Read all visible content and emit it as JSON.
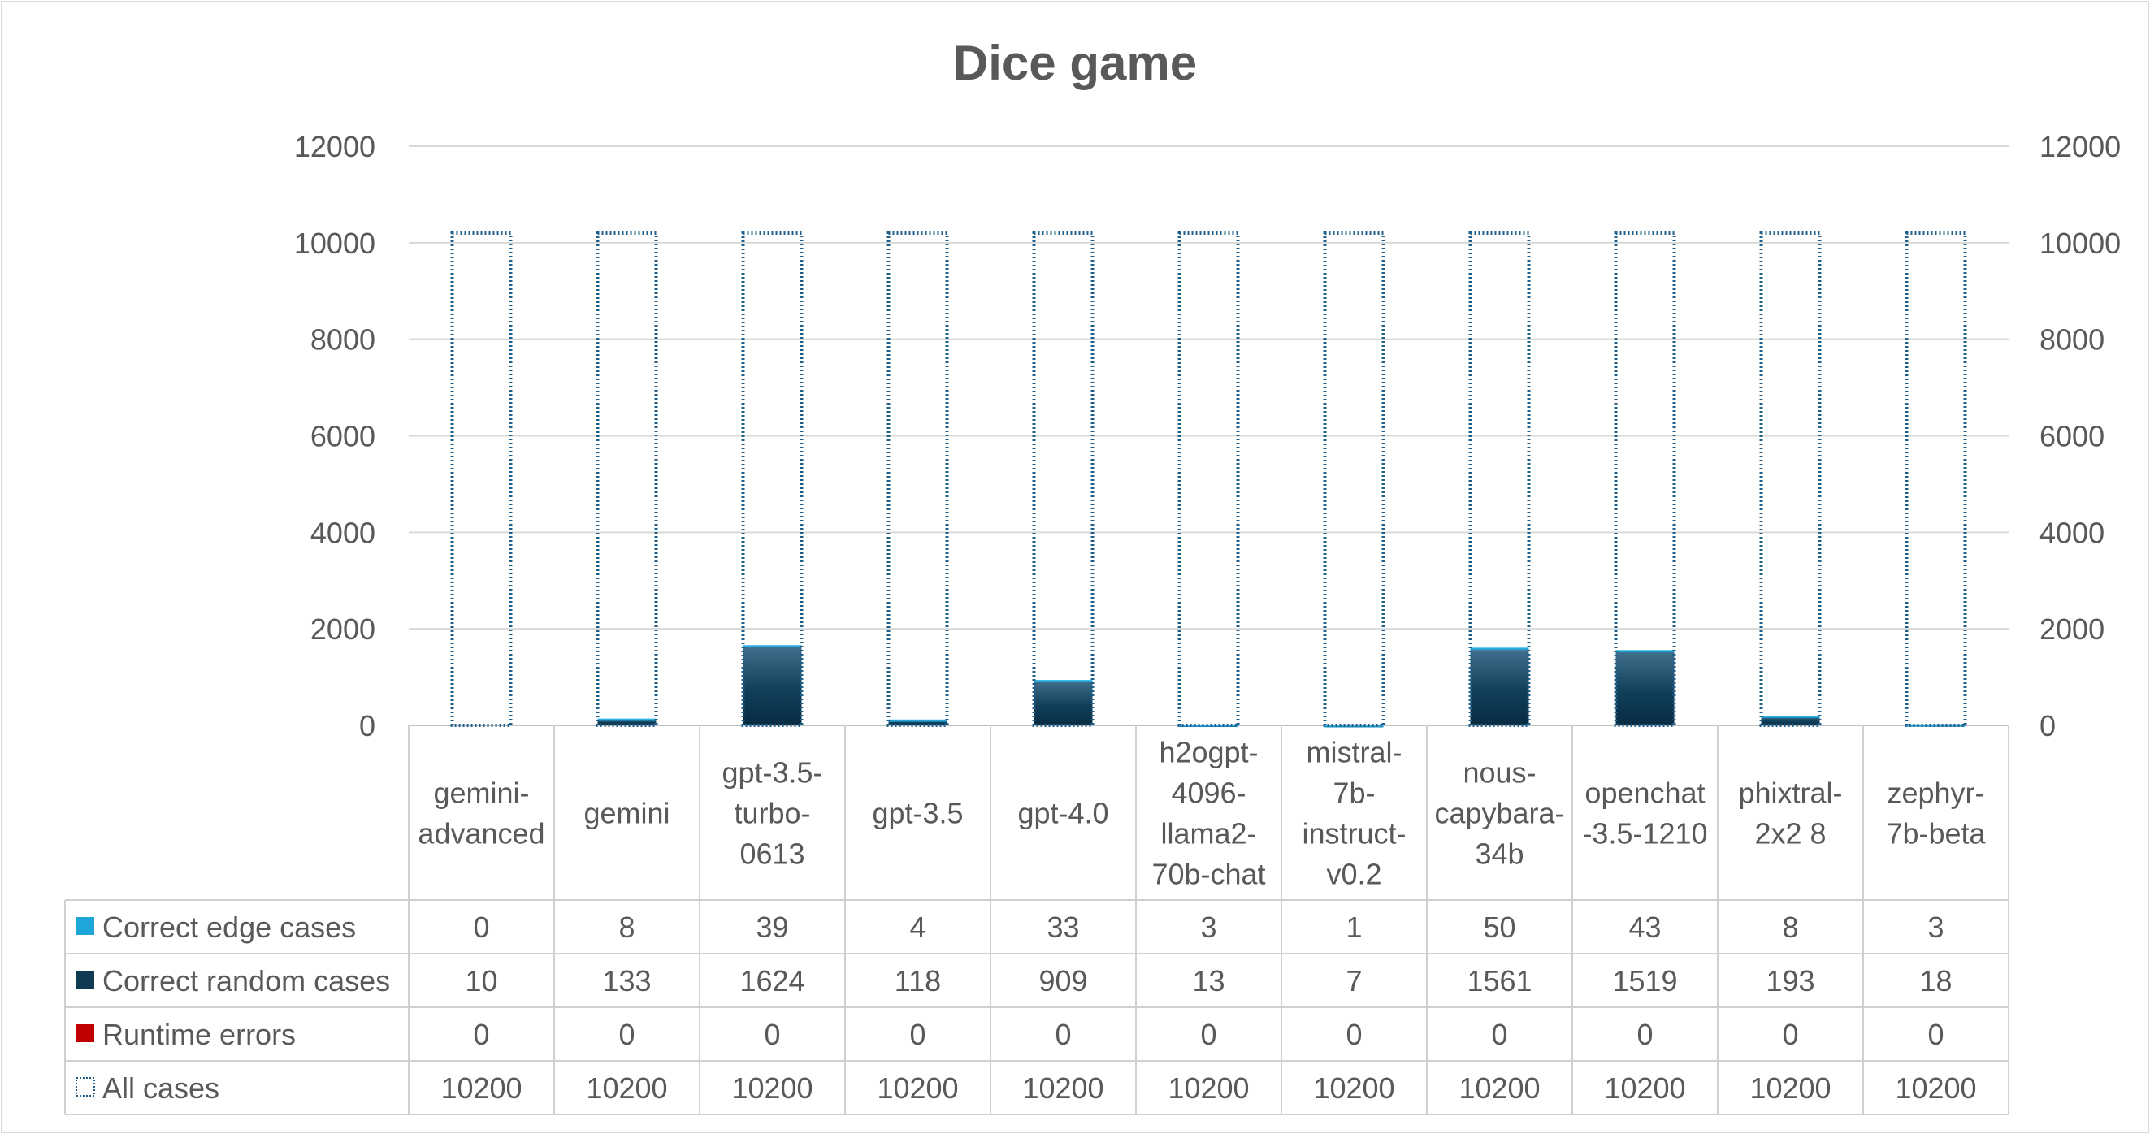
{
  "chart_data": {
    "type": "bar",
    "title": "Dice game",
    "xlabel": "",
    "ylabel": "",
    "ylim": [
      0,
      12000
    ],
    "yticks": [
      0,
      2000,
      4000,
      6000,
      8000,
      10000,
      12000
    ],
    "secondary_yticks": [
      0,
      2000,
      4000,
      6000,
      8000,
      10000,
      12000
    ],
    "grid": true,
    "categories": [
      [
        "gemini-",
        "advanced"
      ],
      [
        "gemini"
      ],
      [
        "gpt-3.5-",
        "turbo-",
        "0613"
      ],
      [
        "gpt-3.5"
      ],
      [
        "gpt-4.0"
      ],
      [
        "h2ogpt-",
        "4096-",
        "llama2-",
        "70b-chat"
      ],
      [
        "mistral-",
        "7b-",
        "instruct-",
        "v0.2"
      ],
      [
        "nous-",
        "capybara-",
        "34b"
      ],
      [
        "openchat",
        "-3.5-1210"
      ],
      [
        "phixtral-",
        "2x2 8"
      ],
      [
        "zephyr-",
        "7b-beta"
      ]
    ],
    "series": [
      {
        "name": "Correct edge cases",
        "color": "#1ea6d9",
        "values": [
          0,
          8,
          39,
          4,
          33,
          3,
          1,
          50,
          43,
          8,
          3
        ]
      },
      {
        "name": "Correct random cases",
        "color": "#0e3a52",
        "values": [
          10,
          133,
          1624,
          118,
          909,
          13,
          7,
          1561,
          1519,
          193,
          18
        ]
      },
      {
        "name": "Runtime errors",
        "color": "#c00000",
        "values": [
          0,
          0,
          0,
          0,
          0,
          0,
          0,
          0,
          0,
          0,
          0
        ]
      },
      {
        "name": "All cases",
        "color": "#1f5f8b",
        "style": "dotted-outline",
        "values": [
          10200,
          10200,
          10200,
          10200,
          10200,
          10200,
          10200,
          10200,
          10200,
          10200,
          10200
        ]
      }
    ]
  }
}
